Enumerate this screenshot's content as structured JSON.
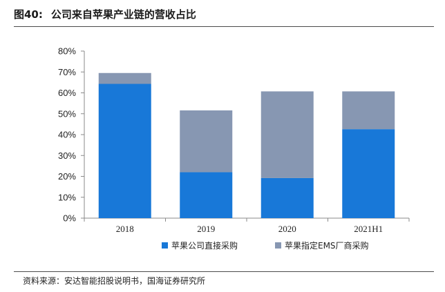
{
  "figure": {
    "number": "图40:",
    "title": "公司来自苹果产业链的营收占比"
  },
  "source_note": "资料来源：安达智能招股说明书，国海证券研究所",
  "colors": {
    "series_direct": "#1878d8",
    "series_ems": "#8797b2",
    "axis": "#888888",
    "rule": "#4a4a4a"
  },
  "chart_data": {
    "type": "bar",
    "stacked": true,
    "categories": [
      "2018",
      "2019",
      "2020",
      "2021H1"
    ],
    "series": [
      {
        "name": "苹果公司直接采购",
        "values": [
          64.3,
          22.0,
          19.2,
          42.6
        ]
      },
      {
        "name": "苹果指定EMS厂商采购",
        "values": [
          5.2,
          29.6,
          41.5,
          18.1
        ]
      }
    ],
    "ylim": [
      0,
      80
    ],
    "yticks": [
      0,
      10,
      20,
      30,
      40,
      50,
      60,
      70,
      80
    ],
    "ytick_labels": [
      "0%",
      "10%",
      "20%",
      "30%",
      "40%",
      "50%",
      "60%",
      "70%",
      "80%"
    ],
    "legend_position": "bottom",
    "grid": false,
    "xlabel": "",
    "ylabel": ""
  }
}
